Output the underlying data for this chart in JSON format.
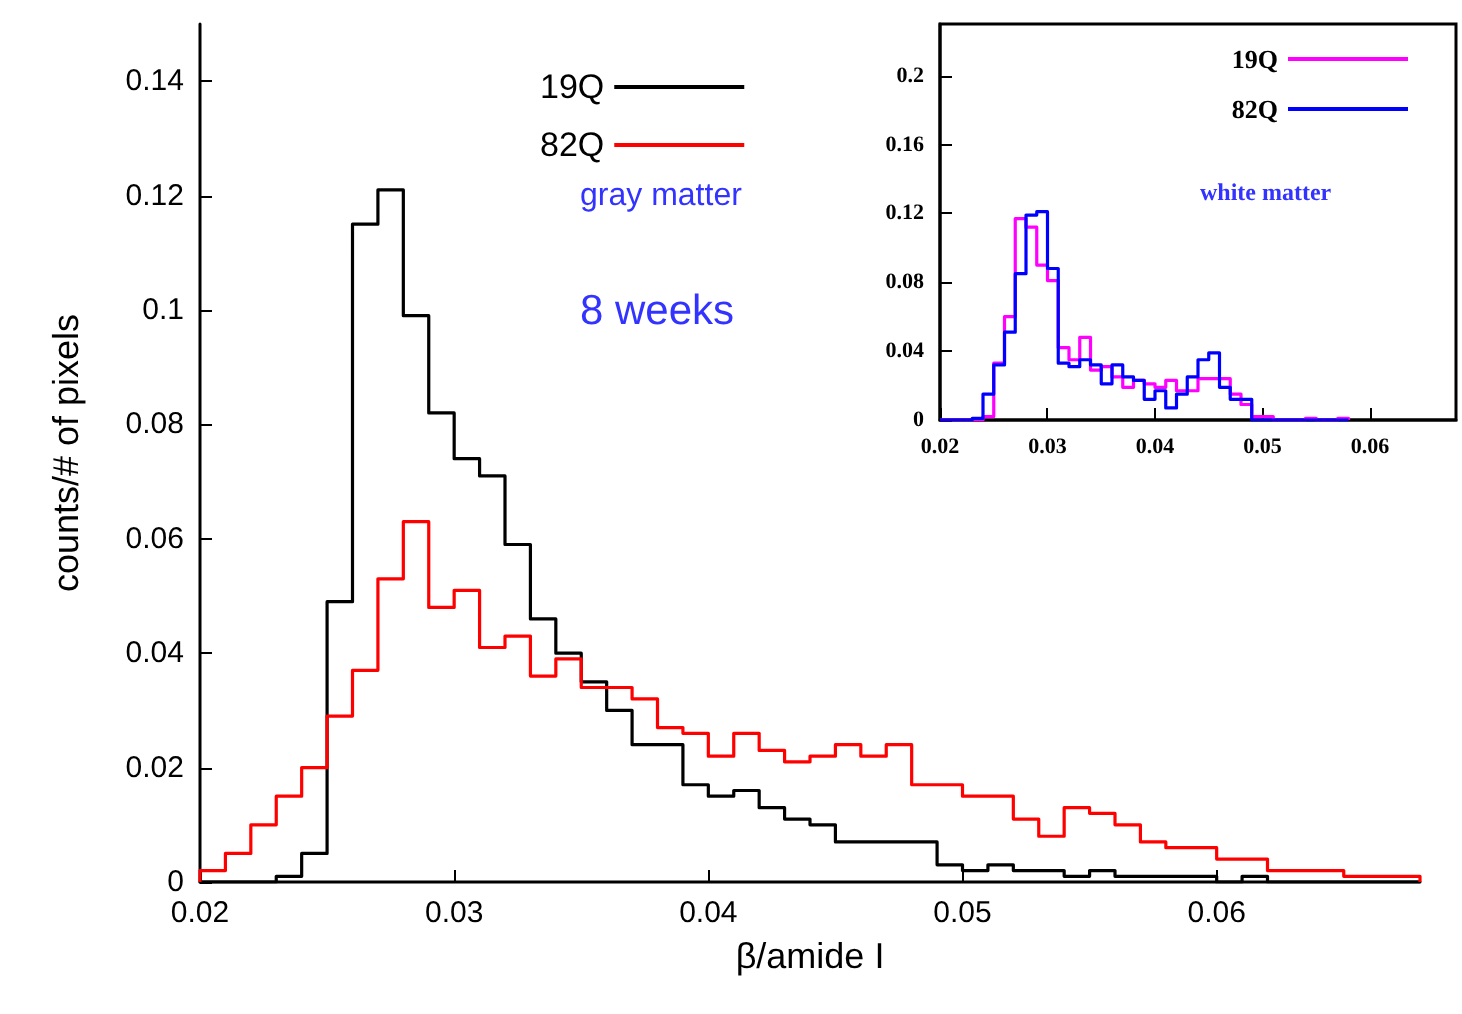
{
  "chart_data": [
    {
      "type": "histogram",
      "xlabel": "β/amide I",
      "ylabel": "counts/# of pixels",
      "bins": [
        0.02,
        0.021,
        0.022,
        0.023,
        0.024,
        0.025,
        0.026,
        0.027,
        0.028,
        0.029,
        0.03,
        0.031,
        0.032,
        0.033,
        0.034,
        0.035,
        0.036,
        0.037,
        0.038,
        0.039,
        0.04,
        0.041,
        0.042,
        0.043,
        0.044,
        0.045,
        0.046,
        0.047,
        0.048,
        0.049,
        0.05,
        0.051,
        0.052,
        0.053,
        0.054,
        0.055,
        0.056,
        0.057,
        0.058,
        0.059,
        0.06,
        0.061,
        0.062,
        0.063,
        0.064,
        0.065,
        0.066,
        0.067,
        0.068
      ],
      "series": [
        {
          "name": "19Q",
          "color": "#000000",
          "values": [
            0,
            0,
            0,
            0.001,
            0.005,
            0.049,
            0.115,
            0.121,
            0.099,
            0.082,
            0.074,
            0.071,
            0.059,
            0.046,
            0.04,
            0.035,
            0.03,
            0.024,
            0.024,
            0.017,
            0.015,
            0.016,
            0.013,
            0.011,
            0.01,
            0.007,
            0.007,
            0.007,
            0.007,
            0.003,
            0.002,
            0.003,
            0.002,
            0.002,
            0.001,
            0.002,
            0.001,
            0.001,
            0.001,
            0.001,
            0,
            0.001,
            0,
            0,
            0,
            0,
            0,
            0
          ]
        },
        {
          "name": "82Q",
          "color": "#ff0000",
          "values": [
            0.002,
            0.005,
            0.01,
            0.015,
            0.02,
            0.029,
            0.037,
            0.053,
            0.063,
            0.048,
            0.051,
            0.041,
            0.043,
            0.036,
            0.039,
            0.034,
            0.034,
            0.032,
            0.027,
            0.026,
            0.022,
            0.026,
            0.023,
            0.021,
            0.022,
            0.024,
            0.022,
            0.024,
            0.017,
            0.017,
            0.015,
            0.015,
            0.011,
            0.008,
            0.013,
            0.012,
            0.01,
            0.007,
            0.006,
            0.006,
            0.004,
            0.004,
            0.002,
            0.002,
            0.002,
            0.001,
            0.001,
            0.001
          ]
        }
      ],
      "xlim": [
        0.02,
        0.068
      ],
      "xticks": [
        0.02,
        0.03,
        0.04,
        0.05,
        0.06
      ],
      "ylim": [
        0,
        0.15
      ],
      "yticks": [
        0,
        0.02,
        0.04,
        0.06,
        0.08,
        0.1,
        0.12,
        0.14
      ],
      "legend": "top",
      "grid": false,
      "annotations": [
        "gray matter",
        "8 weeks"
      ]
    },
    {
      "type": "histogram",
      "bins": [
        0.02,
        0.021,
        0.022,
        0.023,
        0.024,
        0.025,
        0.026,
        0.027,
        0.028,
        0.029,
        0.03,
        0.031,
        0.032,
        0.033,
        0.034,
        0.035,
        0.036,
        0.037,
        0.038,
        0.039,
        0.04,
        0.041,
        0.042,
        0.043,
        0.044,
        0.045,
        0.046,
        0.047,
        0.048,
        0.049,
        0.05,
        0.051,
        0.052,
        0.053,
        0.054,
        0.055,
        0.056,
        0.057,
        0.058
      ],
      "series": [
        {
          "name": "19Q",
          "color": "#ff00ff",
          "values": [
            0,
            0,
            0,
            0,
            0.002,
            0.033,
            0.06,
            0.117,
            0.112,
            0.09,
            0.081,
            0.042,
            0.035,
            0.048,
            0.029,
            0.031,
            0.025,
            0.019,
            0.023,
            0.021,
            0.019,
            0.023,
            0.017,
            0.017,
            0.024,
            0.024,
            0.024,
            0.015,
            0.009,
            0.002,
            0.002,
            0,
            0,
            0,
            0.001,
            0,
            0,
            0.001
          ]
        },
        {
          "name": "82Q",
          "color": "#0000ff",
          "values": [
            0,
            0,
            0,
            0.001,
            0.015,
            0.032,
            0.051,
            0.085,
            0.119,
            0.121,
            0.088,
            0.033,
            0.031,
            0.035,
            0.032,
            0.021,
            0.032,
            0.025,
            0.023,
            0.012,
            0.017,
            0.007,
            0.015,
            0.025,
            0.035,
            0.039,
            0.019,
            0.012,
            0.012,
            0,
            0,
            0,
            0,
            0,
            0,
            0,
            0,
            0
          ]
        }
      ],
      "xlim": [
        0.02,
        0.068
      ],
      "xticks": [
        0.02,
        0.03,
        0.04,
        0.05,
        0.06
      ],
      "ylim": [
        0,
        0.23
      ],
      "yticks": [
        0,
        0.04,
        0.08,
        0.12,
        0.16,
        0.2
      ],
      "legend": "top right",
      "grid": false,
      "annotations": [
        "white matter"
      ]
    }
  ]
}
